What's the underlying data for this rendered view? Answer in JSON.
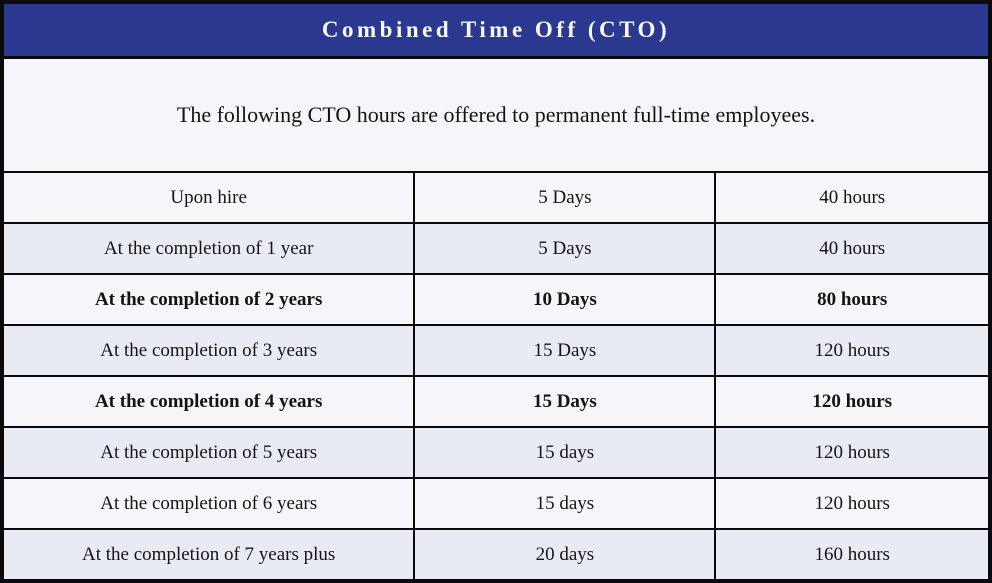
{
  "header": {
    "title": "Combined Time Off (CTO)"
  },
  "intro": {
    "text": "The following CTO hours are offered to permanent full-time employees."
  },
  "table": {
    "rows": [
      {
        "milestone": "Upon hire",
        "days": "5 Days",
        "hours": "40 hours",
        "bold": false
      },
      {
        "milestone": "At the completion of 1 year",
        "days": "5 Days",
        "hours": "40 hours",
        "bold": false
      },
      {
        "milestone": "At the completion of 2 years",
        "days": "10 Days",
        "hours": "80 hours",
        "bold": true
      },
      {
        "milestone": "At the completion of 3 years",
        "days": "15 Days",
        "hours": "120 hours",
        "bold": false
      },
      {
        "milestone": "At the completion of 4 years",
        "days": "15 Days",
        "hours": "120 hours",
        "bold": true
      },
      {
        "milestone": "At the completion of 5 years",
        "days": "15 days",
        "hours": "120 hours",
        "bold": false
      },
      {
        "milestone": "At the completion of 6 years",
        "days": "15 days",
        "hours": "120 hours",
        "bold": false
      },
      {
        "milestone": "At the completion of 7 years plus",
        "days": "20 days",
        "hours": "160 hours",
        "bold": false
      }
    ]
  },
  "colors": {
    "header_bg": "#2A388F",
    "header_text": "#F7F7FC",
    "row_light": "#F5F5FA",
    "row_shaded": "#E9EBF4",
    "line": "#0A0A0A",
    "text": "#141414"
  }
}
